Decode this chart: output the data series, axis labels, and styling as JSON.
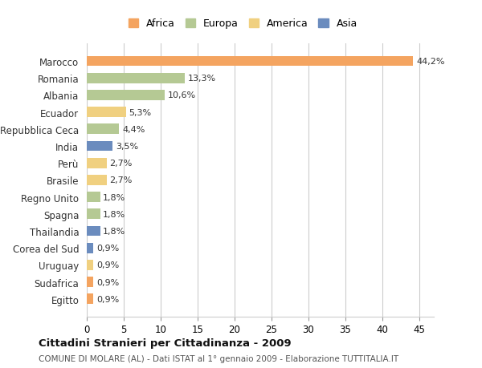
{
  "countries": [
    "Marocco",
    "Romania",
    "Albania",
    "Ecuador",
    "Repubblica Ceca",
    "India",
    "Perù",
    "Brasile",
    "Regno Unito",
    "Spagna",
    "Thailandia",
    "Corea del Sud",
    "Uruguay",
    "Sudafrica",
    "Egitto"
  ],
  "values": [
    44.2,
    13.3,
    10.6,
    5.3,
    4.4,
    3.5,
    2.7,
    2.7,
    1.8,
    1.8,
    1.8,
    0.9,
    0.9,
    0.9,
    0.9
  ],
  "labels": [
    "44,2%",
    "13,3%",
    "10,6%",
    "5,3%",
    "4,4%",
    "3,5%",
    "2,7%",
    "2,7%",
    "1,8%",
    "1,8%",
    "1,8%",
    "0,9%",
    "0,9%",
    "0,9%",
    "0,9%"
  ],
  "continents": [
    "Africa",
    "Europa",
    "Europa",
    "America",
    "Europa",
    "Asia",
    "America",
    "America",
    "Europa",
    "Europa",
    "Asia",
    "Asia",
    "America",
    "Africa",
    "Africa"
  ],
  "colors": {
    "Africa": "#F4A460",
    "Europa": "#B5C994",
    "America": "#F0D080",
    "Asia": "#6B8CBE"
  },
  "legend_colors": {
    "Africa": "#F4A460",
    "Europa": "#B5C994",
    "America": "#F0D080",
    "Asia": "#6B8CBE"
  },
  "title": "Cittadini Stranieri per Cittadinanza - 2009",
  "subtitle": "COMUNE DI MOLARE (AL) - Dati ISTAT al 1° gennaio 2009 - Elaborazione TUTTITALIA.IT",
  "xlim": [
    0,
    47
  ],
  "xticks": [
    0,
    5,
    10,
    15,
    20,
    25,
    30,
    35,
    40,
    45
  ],
  "background_color": "#ffffff",
  "grid_color": "#cccccc"
}
